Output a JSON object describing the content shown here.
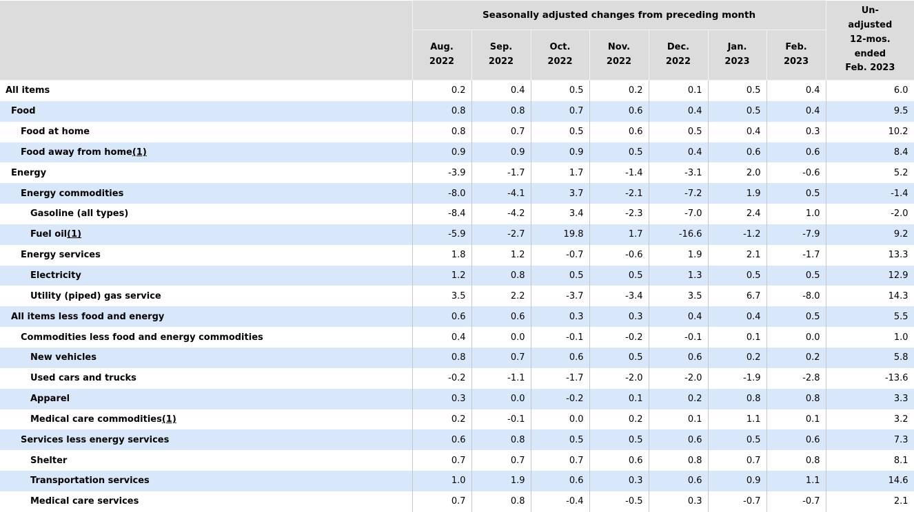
{
  "colors": {
    "header_bg": "#dcdcdc",
    "row_bg": "#ffffff",
    "row_alt_bg": "#d9e7fb",
    "grid_line": "#c6c6c6",
    "text": "#000000"
  },
  "table": {
    "stub_header": "",
    "group_header": "Seasonally adjusted changes from preceding month",
    "unadjusted_header_lines": [
      "Un-",
      "adjusted",
      "12-mos.",
      "ended",
      "Feb. 2023"
    ],
    "month_headers": [
      {
        "month": "Aug.",
        "year": "2022"
      },
      {
        "month": "Sep.",
        "year": "2022"
      },
      {
        "month": "Oct.",
        "year": "2022"
      },
      {
        "month": "Nov.",
        "year": "2022"
      },
      {
        "month": "Dec.",
        "year": "2022"
      },
      {
        "month": "Jan.",
        "year": "2023"
      },
      {
        "month": "Feb.",
        "year": "2023"
      }
    ]
  },
  "chart_data": {
    "type": "table",
    "title": "Seasonally adjusted changes from preceding month",
    "columns": [
      "Aug. 2022",
      "Sep. 2022",
      "Oct. 2022",
      "Nov. 2022",
      "Dec. 2022",
      "Jan. 2023",
      "Feb. 2023",
      "Un-adjusted 12-mos. ended Feb. 2023"
    ],
    "rows": [
      {
        "label": "All items",
        "indent": 0,
        "footnote": null,
        "values": [
          0.2,
          0.4,
          0.5,
          0.2,
          0.1,
          0.5,
          0.4,
          6.0
        ]
      },
      {
        "label": "Food",
        "indent": 1,
        "footnote": null,
        "values": [
          0.8,
          0.8,
          0.7,
          0.6,
          0.4,
          0.5,
          0.4,
          9.5
        ]
      },
      {
        "label": "Food at home",
        "indent": 2,
        "footnote": null,
        "values": [
          0.8,
          0.7,
          0.5,
          0.6,
          0.5,
          0.4,
          0.3,
          10.2
        ]
      },
      {
        "label": "Food away from home",
        "indent": 2,
        "footnote": "(1)",
        "values": [
          0.9,
          0.9,
          0.9,
          0.5,
          0.4,
          0.6,
          0.6,
          8.4
        ]
      },
      {
        "label": "Energy",
        "indent": 1,
        "footnote": null,
        "values": [
          -3.9,
          -1.7,
          1.7,
          -1.4,
          -3.1,
          2.0,
          -0.6,
          5.2
        ]
      },
      {
        "label": "Energy commodities",
        "indent": 2,
        "footnote": null,
        "values": [
          -8.0,
          -4.1,
          3.7,
          -2.1,
          -7.2,
          1.9,
          0.5,
          -1.4
        ]
      },
      {
        "label": "Gasoline (all types)",
        "indent": 3,
        "footnote": null,
        "values": [
          -8.4,
          -4.2,
          3.4,
          -2.3,
          -7.0,
          2.4,
          1.0,
          -2.0
        ]
      },
      {
        "label": "Fuel oil",
        "indent": 3,
        "footnote": "(1)",
        "values": [
          -5.9,
          -2.7,
          19.8,
          1.7,
          -16.6,
          -1.2,
          -7.9,
          9.2
        ]
      },
      {
        "label": "Energy services",
        "indent": 2,
        "footnote": null,
        "values": [
          1.8,
          1.2,
          -0.7,
          -0.6,
          1.9,
          2.1,
          -1.7,
          13.3
        ]
      },
      {
        "label": "Electricity",
        "indent": 3,
        "footnote": null,
        "values": [
          1.2,
          0.8,
          0.5,
          0.5,
          1.3,
          0.5,
          0.5,
          12.9
        ]
      },
      {
        "label": "Utility (piped) gas service",
        "indent": 3,
        "footnote": null,
        "values": [
          3.5,
          2.2,
          -3.7,
          -3.4,
          3.5,
          6.7,
          -8.0,
          14.3
        ]
      },
      {
        "label": "All items less food and energy",
        "indent": 1,
        "footnote": null,
        "values": [
          0.6,
          0.6,
          0.3,
          0.3,
          0.4,
          0.4,
          0.5,
          5.5
        ]
      },
      {
        "label": "Commodities less food and energy commodities",
        "indent": 2,
        "footnote": null,
        "values": [
          0.4,
          0.0,
          -0.1,
          -0.2,
          -0.1,
          0.1,
          0.0,
          1.0
        ]
      },
      {
        "label": "New vehicles",
        "indent": 3,
        "footnote": null,
        "values": [
          0.8,
          0.7,
          0.6,
          0.5,
          0.6,
          0.2,
          0.2,
          5.8
        ]
      },
      {
        "label": "Used cars and trucks",
        "indent": 3,
        "footnote": null,
        "values": [
          -0.2,
          -1.1,
          -1.7,
          -2.0,
          -2.0,
          -1.9,
          -2.8,
          -13.6
        ]
      },
      {
        "label": "Apparel",
        "indent": 3,
        "footnote": null,
        "values": [
          0.3,
          0.0,
          -0.2,
          0.1,
          0.2,
          0.8,
          0.8,
          3.3
        ]
      },
      {
        "label": "Medical care commodities",
        "indent": 3,
        "footnote": "(1)",
        "values": [
          0.2,
          -0.1,
          0.0,
          0.2,
          0.1,
          1.1,
          0.1,
          3.2
        ]
      },
      {
        "label": "Services less energy services",
        "indent": 2,
        "footnote": null,
        "values": [
          0.6,
          0.8,
          0.5,
          0.5,
          0.6,
          0.5,
          0.6,
          7.3
        ]
      },
      {
        "label": "Shelter",
        "indent": 3,
        "footnote": null,
        "values": [
          0.7,
          0.7,
          0.7,
          0.6,
          0.8,
          0.7,
          0.8,
          8.1
        ]
      },
      {
        "label": "Transportation services",
        "indent": 3,
        "footnote": null,
        "values": [
          1.0,
          1.9,
          0.6,
          0.3,
          0.6,
          0.9,
          1.1,
          14.6
        ]
      },
      {
        "label": "Medical care services",
        "indent": 3,
        "footnote": null,
        "values": [
          0.7,
          0.8,
          -0.4,
          -0.5,
          0.3,
          -0.7,
          -0.7,
          2.1
        ]
      }
    ]
  }
}
